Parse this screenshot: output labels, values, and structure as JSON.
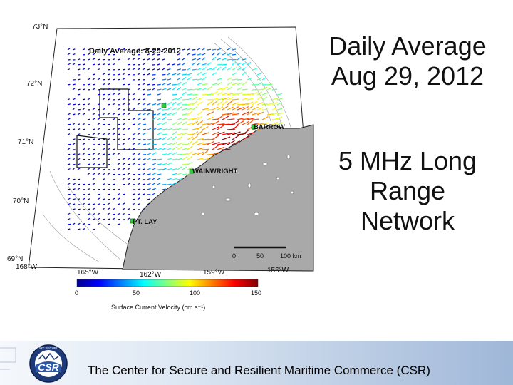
{
  "slide": {
    "title_lines": [
      "Daily Average",
      "Aug 29, 2012"
    ],
    "subtitle_lines": [
      "5 MHz Long",
      "Range",
      "Network"
    ],
    "footer_text": "The Center for Secure and Resilient Maritime Commerce (CSR)"
  },
  "map": {
    "inner_title": "Daily Average: 8-29-2012",
    "place_labels": [
      "BARROW",
      "WAINWRIGHT",
      "PT. LAY"
    ],
    "lat_labels": [
      "73°N",
      "72°N",
      "71°N",
      "70°N",
      "69°N"
    ],
    "lon_labels": [
      "168°W",
      "165°W",
      "162°W",
      "159°W",
      "156°W"
    ],
    "scale_bar_labels": [
      "0",
      "50",
      "100 km"
    ],
    "colorbar_ticks": [
      "0",
      "50",
      "100",
      "150"
    ],
    "colorbar_label": "Surface Current Velocity (cm s⁻¹)"
  },
  "logo": {
    "text": "CSR",
    "ring_text": "PORT SECURITY"
  },
  "colors": {
    "land": "#a9a9a9",
    "ocean": "#ffffff",
    "vector_slow": "#1a3fd6",
    "vector_fast": "#d83a1a",
    "footer_gradient_end": "#9fb7d8"
  }
}
